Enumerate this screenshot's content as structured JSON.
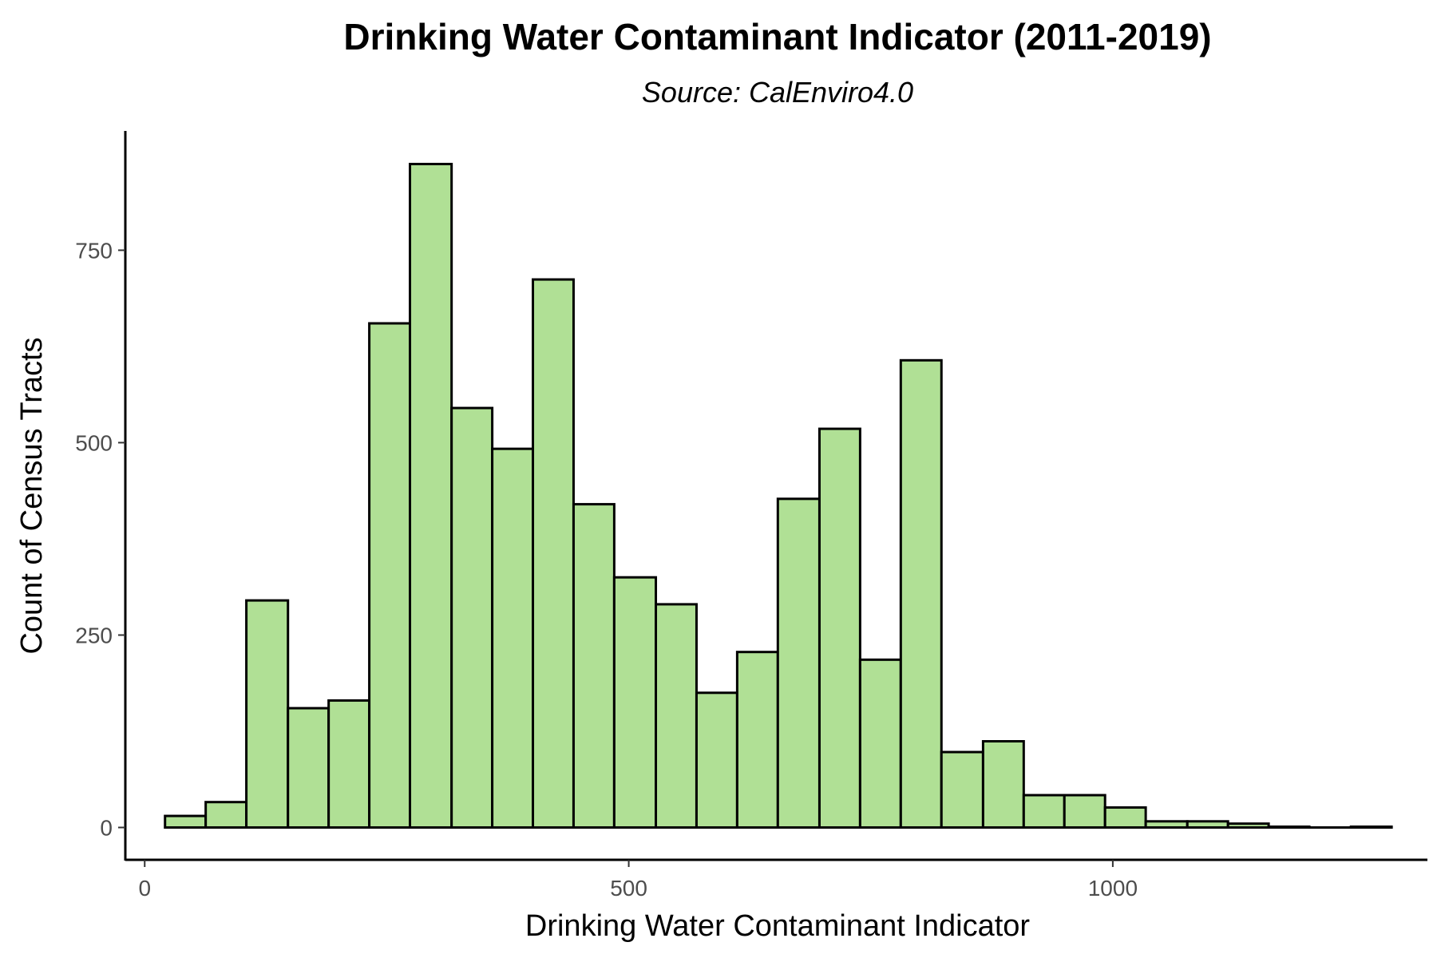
{
  "chart_data": {
    "type": "bar",
    "title": "Drinking Water Contaminant Indicator (2011-2019)",
    "subtitle": "Source: CalEnviro4.0",
    "xlabel": "Drinking Water Contaminant Indicator",
    "ylabel": "Count of Census Tracts",
    "xlim": [
      -20,
      1325
    ],
    "ylim": [
      -42,
      905
    ],
    "x_ticks": [
      0,
      500,
      1000
    ],
    "y_ticks": [
      0,
      250,
      500,
      750
    ],
    "x_tick_labels": [
      "0",
      "500",
      "1000"
    ],
    "y_tick_labels": [
      "0",
      "250",
      "500",
      "750"
    ],
    "grid": false,
    "legend": "none",
    "bar_fill": "#b0e095",
    "bar_stroke": "#000000",
    "bins": [
      {
        "x0": 21,
        "x1": 63,
        "count": 15
      },
      {
        "x0": 63,
        "x1": 105,
        "count": 33
      },
      {
        "x0": 105,
        "x1": 148,
        "count": 295
      },
      {
        "x0": 148,
        "x1": 190,
        "count": 155
      },
      {
        "x0": 190,
        "x1": 232,
        "count": 165
      },
      {
        "x0": 232,
        "x1": 274,
        "count": 655
      },
      {
        "x0": 274,
        "x1": 317,
        "count": 862
      },
      {
        "x0": 317,
        "x1": 359,
        "count": 545
      },
      {
        "x0": 359,
        "x1": 401,
        "count": 492
      },
      {
        "x0": 401,
        "x1": 443,
        "count": 712
      },
      {
        "x0": 443,
        "x1": 485,
        "count": 420
      },
      {
        "x0": 485,
        "x1": 528,
        "count": 325
      },
      {
        "x0": 528,
        "x1": 570,
        "count": 290
      },
      {
        "x0": 570,
        "x1": 612,
        "count": 175
      },
      {
        "x0": 612,
        "x1": 654,
        "count": 228
      },
      {
        "x0": 654,
        "x1": 697,
        "count": 427
      },
      {
        "x0": 697,
        "x1": 739,
        "count": 518
      },
      {
        "x0": 739,
        "x1": 781,
        "count": 218
      },
      {
        "x0": 781,
        "x1": 823,
        "count": 607
      },
      {
        "x0": 823,
        "x1": 866,
        "count": 98
      },
      {
        "x0": 866,
        "x1": 908,
        "count": 112
      },
      {
        "x0": 908,
        "x1": 950,
        "count": 42
      },
      {
        "x0": 950,
        "x1": 992,
        "count": 42
      },
      {
        "x0": 992,
        "x1": 1034,
        "count": 26
      },
      {
        "x0": 1034,
        "x1": 1077,
        "count": 8
      },
      {
        "x0": 1077,
        "x1": 1119,
        "count": 8
      },
      {
        "x0": 1119,
        "x1": 1161,
        "count": 5
      },
      {
        "x0": 1161,
        "x1": 1203,
        "count": 1
      },
      {
        "x0": 1203,
        "x1": 1246,
        "count": 0
      },
      {
        "x0": 1246,
        "x1": 1288,
        "count": 1
      }
    ]
  }
}
